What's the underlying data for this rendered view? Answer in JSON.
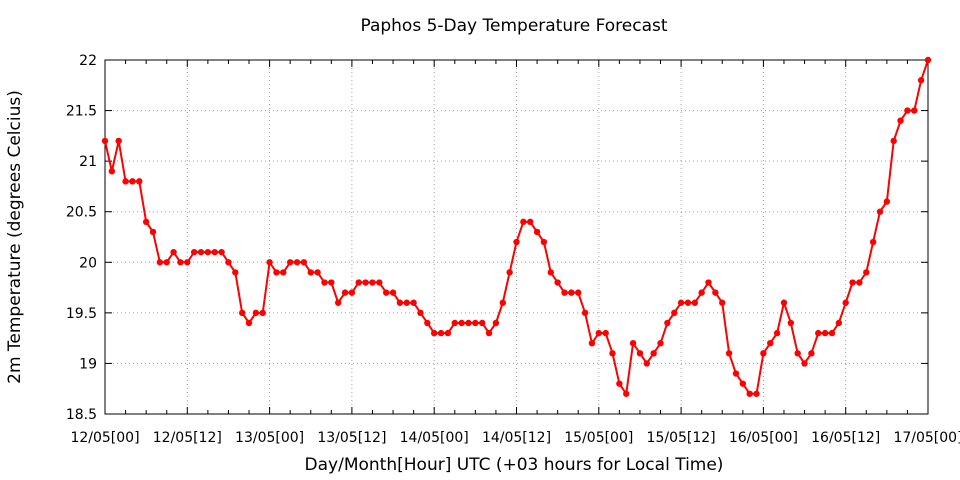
{
  "chart_data": {
    "type": "line",
    "title": "Paphos 5-Day Temperature Forecast",
    "xlabel": "Day/Month[Hour] UTC (+03 hours for Local Time)",
    "ylabel": "2m Temperature (degrees Celcius)",
    "xlim": [
      0,
      120
    ],
    "ylim": [
      18.5,
      22
    ],
    "x_tick_values": [
      0,
      12,
      24,
      36,
      48,
      60,
      72,
      84,
      96,
      108,
      120
    ],
    "x_tick_labels": [
      "12/05[00]",
      "12/05[12]",
      "13/05[00]",
      "13/05[12]",
      "14/05[00]",
      "14/05[12]",
      "15/05[00]",
      "15/05[12]",
      "16/05[00]",
      "16/05[12]",
      "17/05[00]"
    ],
    "y_ticks": [
      18.5,
      19,
      19.5,
      20,
      20.5,
      21,
      21.5,
      22
    ],
    "y_tick_labels": [
      "18.5",
      "19",
      "19.5",
      "20",
      "20.5",
      "21",
      "21.5",
      "22"
    ],
    "grid": true,
    "series": [
      {
        "color": "#ff0000",
        "x": [
          0,
          1,
          2,
          3,
          4,
          5,
          6,
          7,
          8,
          9,
          10,
          11,
          12,
          13,
          14,
          15,
          16,
          17,
          18,
          19,
          20,
          21,
          22,
          23,
          24,
          25,
          26,
          27,
          28,
          29,
          30,
          31,
          32,
          33,
          34,
          35,
          36,
          37,
          38,
          39,
          40,
          41,
          42,
          43,
          44,
          45,
          46,
          47,
          48,
          49,
          50,
          51,
          52,
          53,
          54,
          55,
          56,
          57,
          58,
          59,
          60,
          61,
          62,
          63,
          64,
          65,
          66,
          67,
          68,
          69,
          70,
          71,
          72,
          73,
          74,
          75,
          76,
          77,
          78,
          79,
          80,
          81,
          82,
          83,
          84,
          85,
          86,
          87,
          88,
          89,
          90,
          91,
          92,
          93,
          94,
          95,
          96,
          97,
          98,
          99,
          100,
          101,
          102,
          103,
          104,
          105,
          106,
          107,
          108,
          109,
          110,
          111,
          112,
          113,
          114,
          115,
          116,
          117,
          118,
          119,
          120
        ],
        "values": [
          21.2,
          20.9,
          21.2,
          20.8,
          20.8,
          20.8,
          20.4,
          20.3,
          20.0,
          20.0,
          20.1,
          20.0,
          20.0,
          20.1,
          20.1,
          20.1,
          20.1,
          20.1,
          20.0,
          19.9,
          19.5,
          19.4,
          19.5,
          19.5,
          20.0,
          19.9,
          19.9,
          20.0,
          20.0,
          20.0,
          19.9,
          19.9,
          19.8,
          19.8,
          19.6,
          19.7,
          19.7,
          19.8,
          19.8,
          19.8,
          19.8,
          19.7,
          19.7,
          19.6,
          19.6,
          19.6,
          19.5,
          19.4,
          19.3,
          19.3,
          19.3,
          19.4,
          19.4,
          19.4,
          19.4,
          19.4,
          19.3,
          19.4,
          19.6,
          19.9,
          20.2,
          20.4,
          20.4,
          20.3,
          20.2,
          19.9,
          19.8,
          19.7,
          19.7,
          19.7,
          19.5,
          19.2,
          19.3,
          19.3,
          19.1,
          18.8,
          18.7,
          19.2,
          19.1,
          19.0,
          19.1,
          19.2,
          19.4,
          19.5,
          19.6,
          19.6,
          19.6,
          19.7,
          19.8,
          19.7,
          19.6,
          19.1,
          18.9,
          18.8,
          18.7,
          18.7,
          19.1,
          19.2,
          19.3,
          19.6,
          19.4,
          19.1,
          19.0,
          19.1,
          19.3,
          19.3,
          19.3,
          19.4,
          19.6,
          19.8,
          19.8,
          19.9,
          20.2,
          20.5,
          20.6,
          21.2,
          21.4,
          21.5,
          21.5,
          21.8,
          22.0
        ]
      }
    ]
  }
}
